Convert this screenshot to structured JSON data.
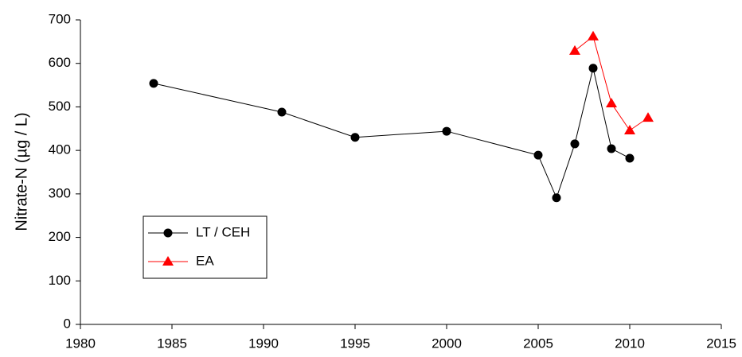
{
  "chart_data": {
    "type": "line",
    "y_label": "Nitrate-N (µg / L)",
    "xlim": [
      1980,
      2015
    ],
    "xticks": [
      1980,
      1985,
      1990,
      1995,
      2000,
      2005,
      2010,
      2015
    ],
    "ylim": [
      0,
      700
    ],
    "yticks": [
      0,
      100,
      200,
      300,
      400,
      500,
      600,
      700
    ],
    "legend_position": "lower left",
    "series": [
      {
        "name": "LT / CEH",
        "color": "#000000",
        "marker": "circle",
        "x": [
          1984,
          1991,
          1995,
          2000,
          2005,
          2006,
          2007,
          2008,
          2009,
          2010
        ],
        "values": [
          554,
          488,
          430,
          444,
          389,
          291,
          415,
          589,
          404,
          382
        ]
      },
      {
        "name": "EA",
        "color": "#ff0000",
        "marker": "triangle",
        "x": [
          2007,
          2008,
          2009,
          2010,
          2011
        ],
        "values": [
          629,
          662,
          508,
          446,
          475
        ]
      }
    ]
  }
}
